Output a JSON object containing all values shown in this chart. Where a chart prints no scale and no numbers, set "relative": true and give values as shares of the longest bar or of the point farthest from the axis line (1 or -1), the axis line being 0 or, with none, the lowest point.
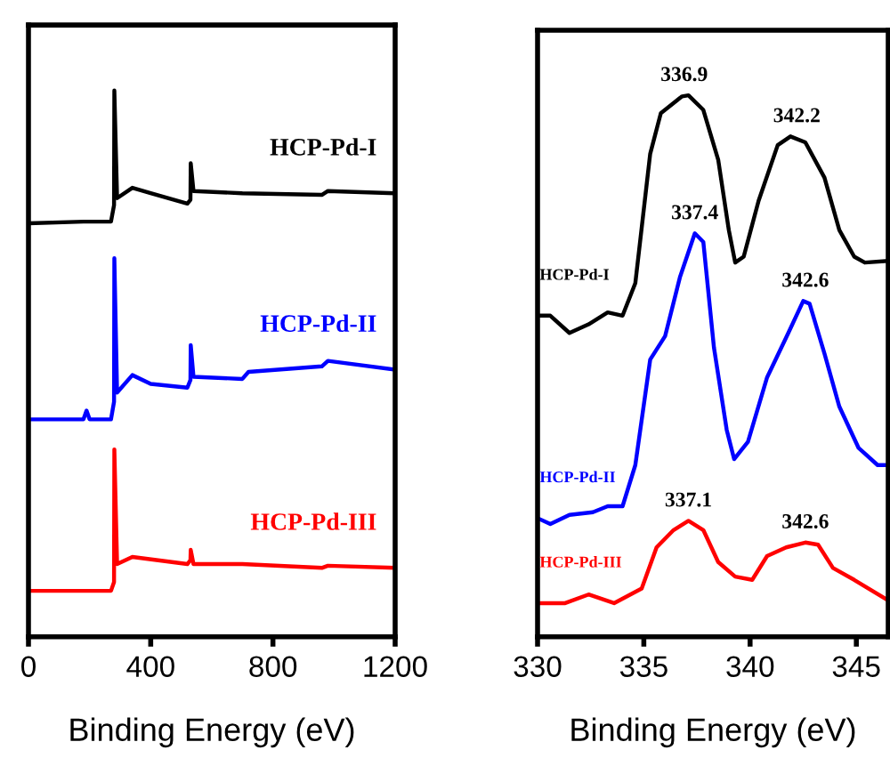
{
  "chart_data": [
    {
      "type": "line",
      "relative": true,
      "xlabel": "Binding Energy (eV)",
      "xlim": [
        0,
        1200
      ],
      "xticks": [
        0,
        400,
        800,
        1200
      ],
      "tick_labels": "x",
      "legend": false,
      "grid": false,
      "series": [
        {
          "name": "HCP-Pd-I",
          "color": "#000000",
          "x": [
            0,
            180,
            270,
            280,
            281,
            290,
            340,
            400,
            520,
            530,
            531,
            540,
            700,
            960,
            980,
            1200
          ],
          "values": [
            0.757,
            0.76,
            0.76,
            0.79,
            1.0,
            0.803,
            0.822,
            0.812,
            0.793,
            0.8,
            0.867,
            0.816,
            0.812,
            0.809,
            0.816,
            0.812
          ]
        },
        {
          "name": "HCP-Pd-II",
          "color": "#0000ff",
          "x": [
            0,
            180,
            190,
            200,
            270,
            280,
            281,
            290,
            340,
            400,
            520,
            530,
            531,
            540,
            700,
            720,
            960,
            980,
            1200
          ],
          "values": [
            0.398,
            0.398,
            0.414,
            0.398,
            0.398,
            0.43,
            0.693,
            0.447,
            0.479,
            0.463,
            0.456,
            0.47,
            0.534,
            0.476,
            0.472,
            0.485,
            0.495,
            0.505,
            0.489
          ]
        },
        {
          "name": "HCP-Pd-III",
          "color": "#ff0000",
          "x": [
            0,
            270,
            280,
            281,
            290,
            340,
            520,
            530,
            531,
            540,
            700,
            960,
            980,
            1200
          ],
          "values": [
            0.084,
            0.084,
            0.1,
            0.343,
            0.133,
            0.146,
            0.133,
            0.14,
            0.159,
            0.133,
            0.133,
            0.126,
            0.13,
            0.126
          ]
        }
      ]
    },
    {
      "type": "line",
      "relative": true,
      "xlabel": "Binding Energy (eV)",
      "xlim": [
        330,
        346.5
      ],
      "xticks": [
        330,
        335,
        340,
        345
      ],
      "tick_labels": "x",
      "legend": false,
      "grid": false,
      "annotations": [
        {
          "text": "336.9",
          "x": 336.9,
          "y": 1.0
        },
        {
          "text": "342.2",
          "x": 342.2,
          "y": 0.924
        },
        {
          "text": "337.4",
          "x": 337.4,
          "y": 0.745
        },
        {
          "text": "342.6",
          "x": 342.6,
          "y": 0.62
        },
        {
          "text": "337.1",
          "x": 337.1,
          "y": 0.214
        },
        {
          "text": "342.6",
          "x": 342.6,
          "y": 0.174
        }
      ],
      "series": [
        {
          "name": "HCP-Pd-I",
          "color": "#000000",
          "x": [
            330,
            330.6,
            331.5,
            332.4,
            333.3,
            334,
            334.6,
            335.3,
            335.8,
            336.8,
            337.1,
            337.8,
            338.5,
            339,
            339.3,
            339.7,
            340.4,
            341.3,
            341.9,
            342.6,
            343.5,
            344.2,
            344.9,
            345.4,
            346.5
          ],
          "values": [
            0.593,
            0.593,
            0.561,
            0.577,
            0.599,
            0.593,
            0.653,
            0.892,
            0.967,
            0.998,
            1.0,
            0.973,
            0.881,
            0.751,
            0.691,
            0.702,
            0.805,
            0.908,
            0.924,
            0.913,
            0.848,
            0.751,
            0.702,
            0.691,
            0.694
          ]
        },
        {
          "name": "HCP-Pd-II",
          "color": "#0000ff",
          "x": [
            330,
            330.6,
            331.5,
            332.6,
            333.3,
            334,
            334.6,
            335.3,
            336,
            336.7,
            337.4,
            337.8,
            338.3,
            338.9,
            339.25,
            339.9,
            340.8,
            341.8,
            342.5,
            342.8,
            343.5,
            344.2,
            345.1,
            346,
            346.5
          ],
          "values": [
            0.219,
            0.208,
            0.225,
            0.23,
            0.241,
            0.241,
            0.317,
            0.512,
            0.555,
            0.664,
            0.745,
            0.729,
            0.534,
            0.382,
            0.328,
            0.36,
            0.479,
            0.561,
            0.62,
            0.615,
            0.523,
            0.425,
            0.349,
            0.317,
            0.317
          ]
        },
        {
          "name": "HCP-Pd-III",
          "color": "#ff0000",
          "x": [
            330,
            331.3,
            332.4,
            333.6,
            334.9,
            335.6,
            336.4,
            337.1,
            337.8,
            338.5,
            339.3,
            340.1,
            340.8,
            341.7,
            342.6,
            343.2,
            343.9,
            344.9,
            346.5
          ],
          "values": [
            0.062,
            0.062,
            0.078,
            0.062,
            0.089,
            0.165,
            0.197,
            0.214,
            0.197,
            0.138,
            0.111,
            0.105,
            0.149,
            0.165,
            0.174,
            0.17,
            0.127,
            0.105,
            0.067
          ]
        }
      ]
    }
  ]
}
